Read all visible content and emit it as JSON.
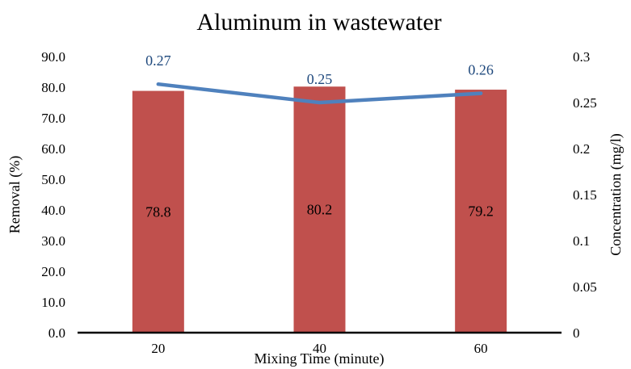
{
  "chart_data": {
    "type": "bar",
    "title": "Aluminum in wastewater",
    "xlabel": "Mixing Time (minute)",
    "categories": [
      "20",
      "40",
      "60"
    ],
    "series": [
      {
        "type": "bar",
        "axis": "left",
        "values": [
          78.8,
          80.2,
          79.2
        ],
        "value_labels": [
          "78.8",
          "80.2",
          "79.2"
        ],
        "color": "#c0504d"
      },
      {
        "type": "line",
        "axis": "right",
        "values": [
          0.27,
          0.25,
          0.26
        ],
        "value_labels": [
          "0.27",
          "0.25",
          "0.26"
        ],
        "color": "#4f81bd"
      }
    ],
    "y_left": {
      "label": "Removal (%)",
      "range": [
        0,
        90
      ],
      "ticks": [
        0,
        10,
        20,
        30,
        40,
        50,
        60,
        70,
        80,
        90
      ],
      "tick_labels": [
        "0.0",
        "10.0",
        "20.0",
        "30.0",
        "40.0",
        "50.0",
        "60.0",
        "70.0",
        "80.0",
        "90.0"
      ]
    },
    "y_right": {
      "label": "Concentration (mg/l)",
      "range": [
        0,
        0.3
      ],
      "ticks": [
        0,
        0.05,
        0.1,
        0.15,
        0.2,
        0.25,
        0.3
      ],
      "tick_labels": [
        "0",
        "0.05",
        "0.1",
        "0.15",
        "0.2",
        "0.25",
        "0.3"
      ]
    },
    "grid": false,
    "legend": "none"
  }
}
